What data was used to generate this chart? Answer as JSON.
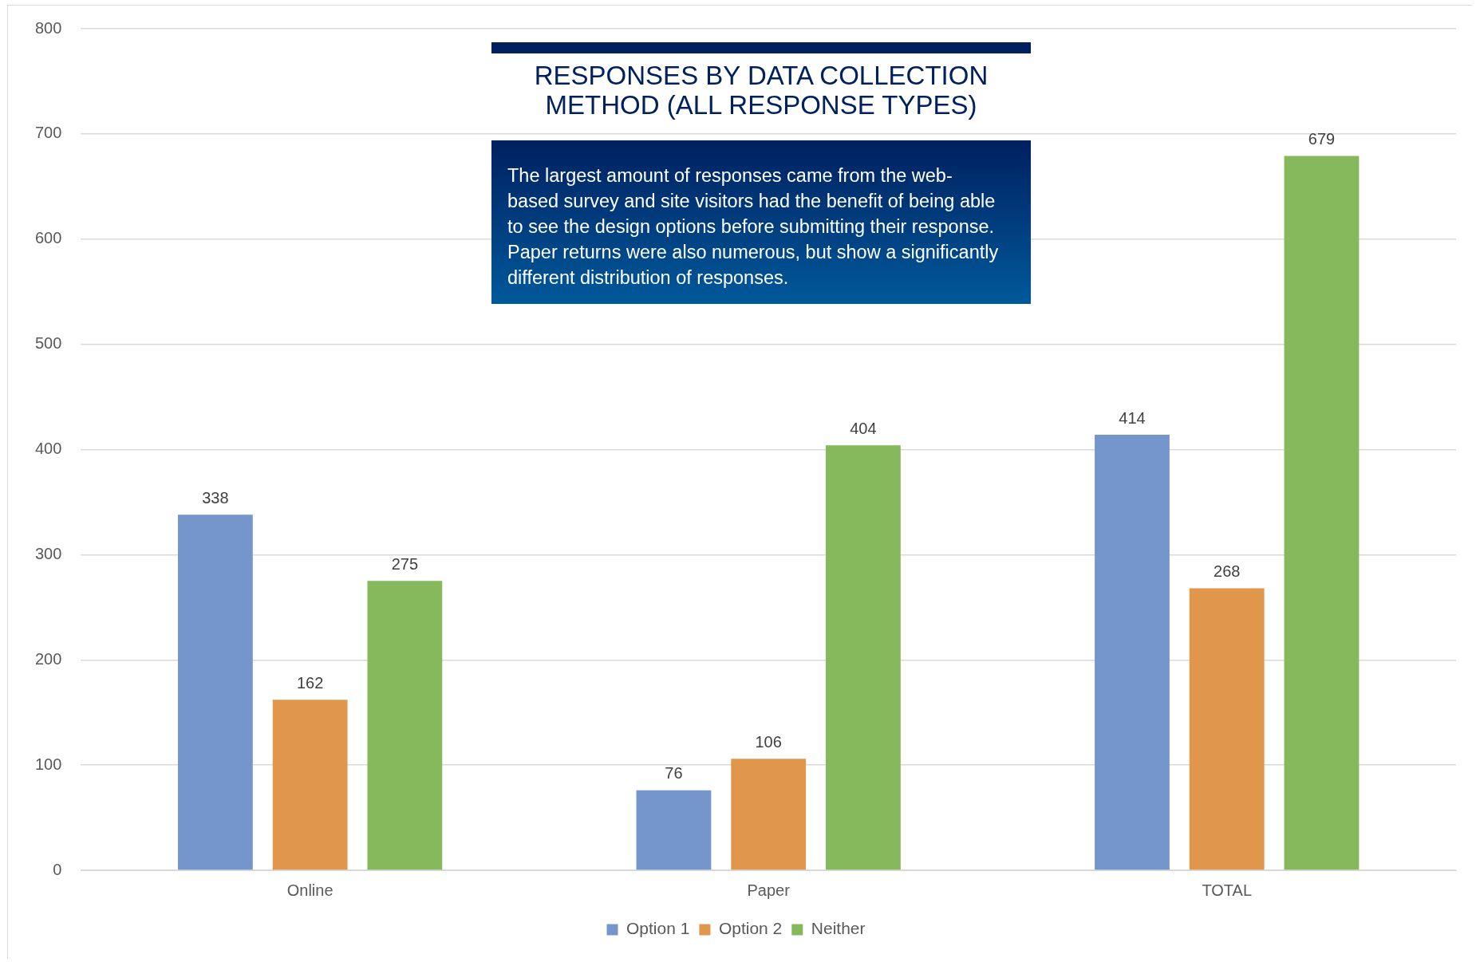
{
  "chart_data": {
    "type": "bar",
    "title": "RESPONSES BY DATA COLLECTION METHOD (ALL RESPONSE TYPES)",
    "annotations": [
      "The largest amount of responses came from the web-based survey and site visitors had the benefit of being able to see the design options before submitting their response. Paper returns were also numerous, but show a significantly different distribution of responses."
    ],
    "categories": [
      "Online",
      "Paper",
      "TOTAL"
    ],
    "series": [
      {
        "name": "Option 1",
        "color": "#7496cc",
        "values": [
          338,
          76,
          414
        ]
      },
      {
        "name": "Option 2",
        "color": "#e0974c",
        "values": [
          162,
          106,
          268
        ]
      },
      {
        "name": "Neither",
        "color": "#85b95b",
        "values": [
          275,
          404,
          679
        ]
      }
    ],
    "ylim": [
      0,
      800
    ],
    "yticks": [
      0,
      100,
      200,
      300,
      400,
      500,
      600,
      700,
      800
    ],
    "grid": "y",
    "legend": "bottom",
    "data_labels": true
  }
}
